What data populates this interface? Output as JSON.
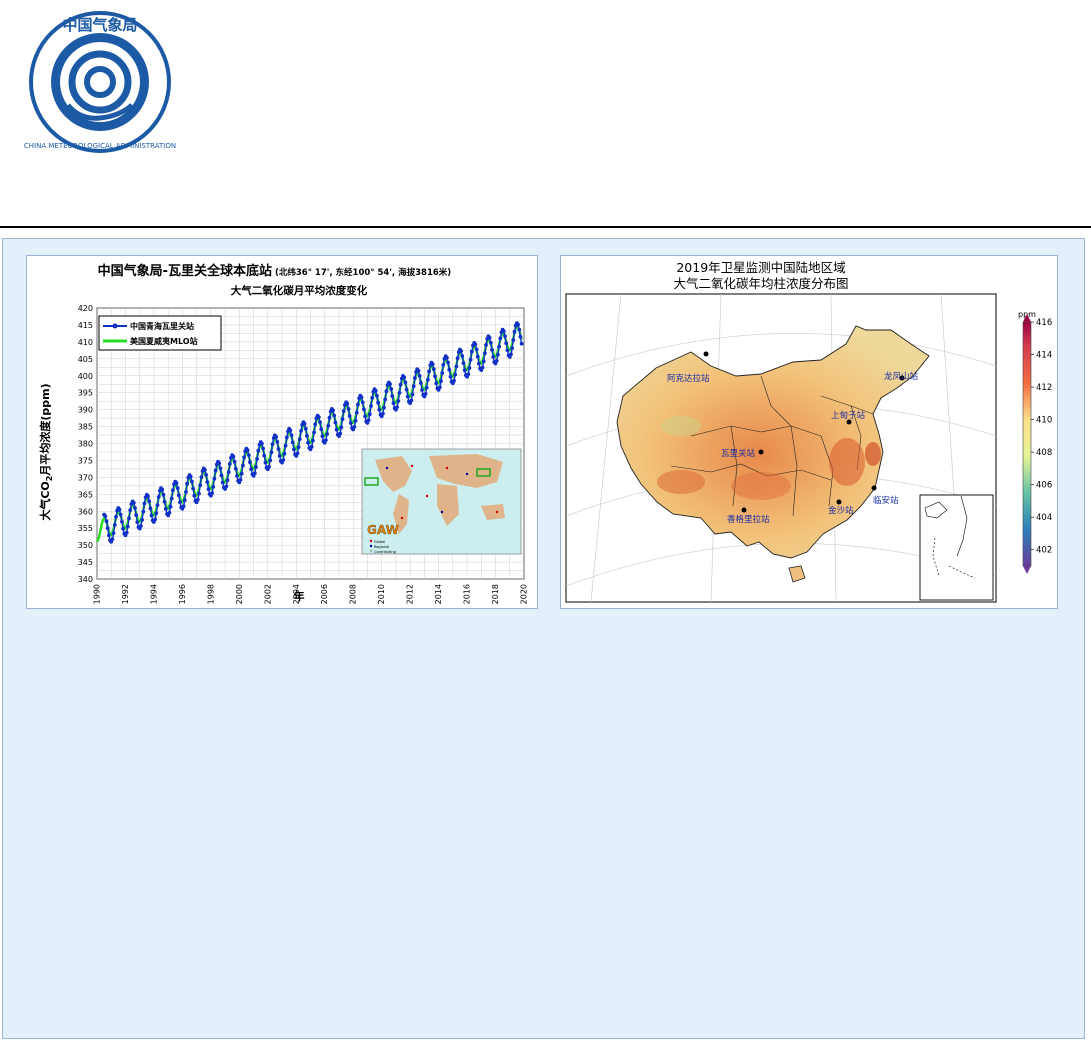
{
  "logo": {
    "top_text": "中国气象局",
    "ring_text": "CHINA METEOROLOGICAL ADMINISTRATION",
    "colors": {
      "ring": "#1c5aa5",
      "fill": "#ffffff"
    }
  },
  "left_chart": {
    "title": "中国气象局-瓦里关全球本底站",
    "title_note": "(北纬36° 17', 东经100° 54', 海拔3816米)",
    "subtitle": "大气二氧化碳月平均浓度变化",
    "xlabel": "年",
    "ylabel_pre": "大气CO",
    "ylabel_sub": "2",
    "ylabel_post": "月平均浓度(ppm)",
    "inset_label": "GAW",
    "inset_legend": [
      "Global",
      "Regional",
      "Contributing"
    ]
  },
  "chart_data": {
    "type": "line",
    "x_ticks": [
      1990,
      1992,
      1994,
      1996,
      1998,
      2000,
      2002,
      2004,
      2006,
      2008,
      2010,
      2012,
      2014,
      2016,
      2018,
      2020
    ],
    "y_ticks": [
      340,
      345,
      350,
      355,
      360,
      365,
      370,
      375,
      380,
      385,
      390,
      395,
      400,
      405,
      410,
      415,
      420
    ],
    "xlim": [
      1990,
      2020
    ],
    "ylim": [
      340,
      420
    ],
    "grid": true,
    "legend_position": "top-left",
    "series": [
      {
        "name": "中国青海瓦里关站",
        "color": "#1030c8",
        "marker": "circle",
        "start_year": 1990.5,
        "start_value": 354.5,
        "trend_per_year": 1.95,
        "seasonal_amplitude": 4.5
      },
      {
        "name": "美国夏威夷MLO站",
        "color": "#22dd22",
        "marker": "none",
        "start_year": 1990.0,
        "start_value": 354.0,
        "trend_per_year": 1.95,
        "seasonal_amplitude": 3.0
      }
    ]
  },
  "right_map": {
    "title_line1": "2019年卫星监测中国陆地区域",
    "title_line2": "大气二氧化碳年均柱浓度分布图",
    "colorbar_unit": "ppm",
    "colorbar_ticks": [
      416,
      414,
      412,
      410,
      408,
      406,
      404,
      402
    ],
    "stations": [
      "阿克达拉站",
      "龙凤山站",
      "上甸子站",
      "瓦里关站",
      "香格里拉站",
      "金沙站",
      "临安站"
    ]
  }
}
